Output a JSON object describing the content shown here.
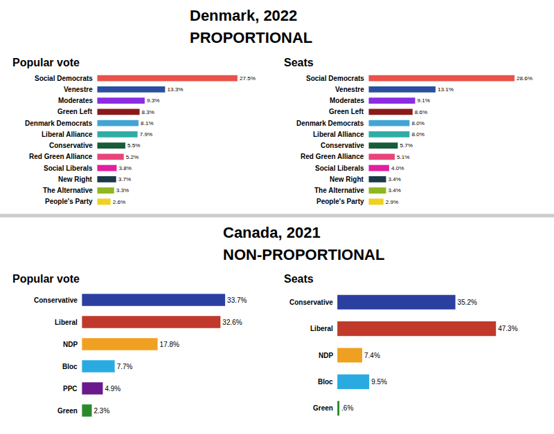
{
  "chart_data": [
    {
      "type": "bar",
      "orientation": "horizontal",
      "title": "Popular vote",
      "annotations": [
        {
          "text": "Denmark, 2022"
        },
        {
          "text": "PROPORTIONAL"
        }
      ],
      "categories": [
        "Social Democrats",
        "Venestre",
        "Moderates",
        "Green Left",
        "Denmark Democrats",
        "Liberal Alliance",
        "Conservative",
        "Red Green Alliance",
        "Social Liberals",
        "New Right",
        "The Alternative",
        "People's Party"
      ],
      "values": [
        27.5,
        13.3,
        9.3,
        8.3,
        8.1,
        7.9,
        5.5,
        5.2,
        3.8,
        3.7,
        3.3,
        2.6
      ],
      "value_labels": [
        "27.5%",
        "13.3%",
        "9.3%",
        "8.3%",
        "8.1%",
        "7.9%",
        "5.5%",
        "5.2%",
        "3.8%",
        "3.7%",
        "3.3%",
        "2.6%"
      ],
      "colors": [
        "#e8524a",
        "#2b4fa0",
        "#8b2be2",
        "#8b1a1a",
        "#42a5d5",
        "#2eada6",
        "#1a5c3a",
        "#e8457a",
        "#e020a0",
        "#1a3a4a",
        "#8db820",
        "#f0d020"
      ],
      "xlim": [
        -18,
        32
      ],
      "data_labels": true,
      "tick_labels": false,
      "grid": false
    },
    {
      "type": "bar",
      "orientation": "horizontal",
      "title": "Seats",
      "categories": [
        "Social Democrats",
        "Venestre",
        "Moderates",
        "Green Left",
        "Denmark Democrats",
        "Liberal Alliance",
        "Conservative",
        "Red Green Alliance",
        "Social Liberals",
        "New Right",
        "The Alternative",
        "People's Party"
      ],
      "values": [
        28.6,
        13.1,
        9.1,
        8.6,
        8.0,
        8.0,
        5.7,
        5.1,
        4.0,
        3.4,
        3.4,
        2.9
      ],
      "value_labels": [
        "28.6%",
        "13.1%",
        "9.1%",
        "8.6%",
        "8.0%",
        "8.0%",
        "5.7%",
        "5.1%",
        "4.0%",
        "3.4%",
        "3.4%",
        "2.9%"
      ],
      "colors": [
        "#e8524a",
        "#2b4fa0",
        "#8b2be2",
        "#8b1a1a",
        "#42a5d5",
        "#2eada6",
        "#1a5c3a",
        "#e8457a",
        "#e020a0",
        "#1a3a4a",
        "#8db820",
        "#f0d020"
      ],
      "xlim": [
        -18,
        32
      ],
      "data_labels": true,
      "tick_labels": false,
      "grid": false
    },
    {
      "type": "bar",
      "orientation": "horizontal",
      "title": "Popular vote",
      "annotations": [
        {
          "text": "Canada, 2021"
        },
        {
          "text": "NON-PROPORTIONAL"
        }
      ],
      "categories": [
        "Conservative",
        "Liberal",
        "NDP",
        "Bloc",
        "PPC",
        "Green"
      ],
      "values": [
        33.7,
        32.6,
        17.8,
        7.7,
        4.9,
        2.3
      ],
      "value_labels": [
        "33.7%",
        "32.6%",
        "17.8%",
        "7.7%",
        "4.9%",
        "2.3%"
      ],
      "colors": [
        "#2b3fa0",
        "#c0392b",
        "#f0a020",
        "#29abe2",
        "#6a1a8a",
        "#2a8a2a"
      ],
      "xlim": [
        -18,
        42
      ],
      "data_labels": true,
      "tick_labels": false,
      "grid": false
    },
    {
      "type": "bar",
      "orientation": "horizontal",
      "title": "Seats",
      "categories": [
        "Conservative",
        "Liberal",
        "NDP",
        "Bloc",
        "Green"
      ],
      "values": [
        35.2,
        47.3,
        7.4,
        9.5,
        0.6
      ],
      "value_labels": [
        "35.2%",
        "47.3%",
        "7.4%",
        "9.5%",
        ".6%"
      ],
      "colors": [
        "#2b3fa0",
        "#c0392b",
        "#f0a020",
        "#29abe2",
        "#2a8a2a"
      ],
      "xlim": [
        -18,
        58
      ],
      "data_labels": true,
      "tick_labels": false,
      "grid": false
    }
  ]
}
